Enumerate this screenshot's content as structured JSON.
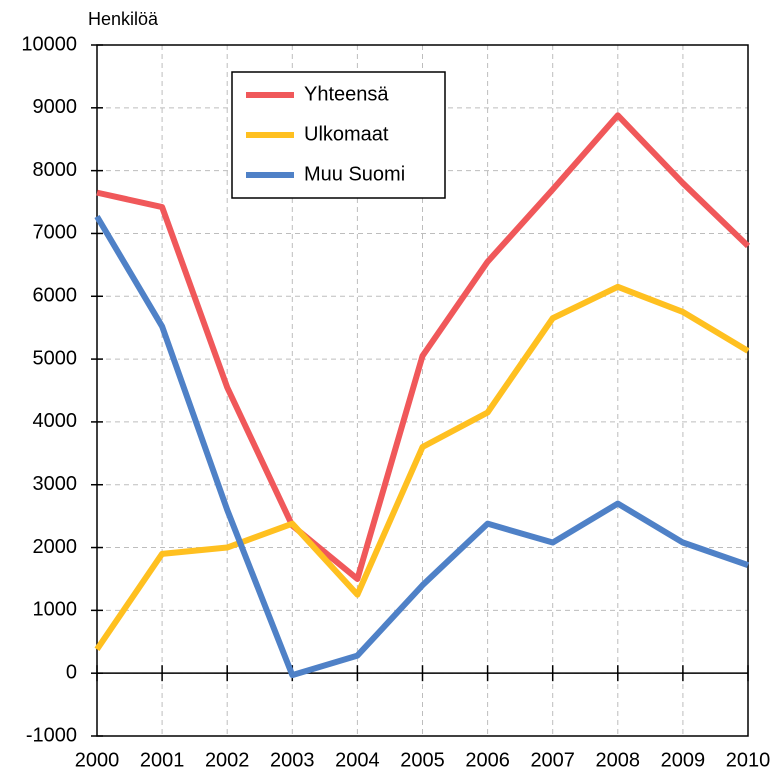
{
  "chart_data": {
    "type": "line",
    "y_label": "Henkilöä",
    "categories": [
      "2000",
      "2001",
      "2002",
      "2003",
      "2004",
      "2005",
      "2006",
      "2007",
      "2008",
      "2009",
      "2010"
    ],
    "series": [
      {
        "name": "Yhteensä",
        "color": "#f0585a",
        "values": [
          7650,
          7420,
          4550,
          2350,
          1500,
          5050,
          6550,
          7700,
          8880,
          7800,
          6800
        ]
      },
      {
        "name": "Ulkomaat",
        "color": "#ffc020",
        "values": [
          380,
          1900,
          2000,
          2380,
          1250,
          3600,
          4150,
          5650,
          6150,
          5750,
          5130
        ]
      },
      {
        "name": "Muu Suomi",
        "color": "#4f81c7",
        "values": [
          7270,
          5520,
          2600,
          -30,
          280,
          1400,
          2380,
          2080,
          2700,
          2080,
          1720
        ]
      }
    ],
    "ylim": [
      -1000,
      10000
    ],
    "yticks": [
      -1000,
      0,
      1000,
      2000,
      3000,
      4000,
      5000,
      6000,
      7000,
      8000,
      9000,
      10000
    ],
    "grid": true
  }
}
